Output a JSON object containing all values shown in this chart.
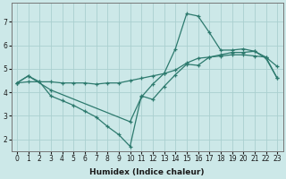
{
  "xlabel": "Humidex (Indice chaleur)",
  "xlim": [
    -0.5,
    23.5
  ],
  "ylim": [
    1.5,
    7.8
  ],
  "yticks": [
    2,
    3,
    4,
    5,
    6,
    7
  ],
  "xticks": [
    0,
    1,
    2,
    3,
    4,
    5,
    6,
    7,
    8,
    9,
    10,
    11,
    12,
    13,
    14,
    15,
    16,
    17,
    18,
    19,
    20,
    21,
    22,
    23
  ],
  "bg_color": "#cce8e8",
  "grid_color": "#aacfcf",
  "line_color": "#2d7a6e",
  "line1_x": [
    0,
    1,
    2,
    3,
    4,
    5,
    6,
    7,
    8,
    9,
    10,
    11,
    12,
    13,
    14,
    15,
    16,
    17,
    18,
    19,
    20,
    21,
    22,
    23
  ],
  "line1_y": [
    4.4,
    4.45,
    4.45,
    4.45,
    4.4,
    4.4,
    4.4,
    4.35,
    4.4,
    4.4,
    4.5,
    4.6,
    4.7,
    4.8,
    4.95,
    5.25,
    5.45,
    5.5,
    5.55,
    5.6,
    5.6,
    5.55,
    5.5,
    4.6
  ],
  "line2_x": [
    0,
    1,
    2,
    3,
    4,
    5,
    6,
    7,
    8,
    9,
    10,
    11,
    12,
    13,
    14,
    15,
    16,
    17,
    18,
    19,
    20,
    21,
    22,
    23
  ],
  "line2_y": [
    4.4,
    4.7,
    4.45,
    3.85,
    3.65,
    3.45,
    3.2,
    2.95,
    2.55,
    2.2,
    1.7,
    3.85,
    3.7,
    4.25,
    4.75,
    5.2,
    5.15,
    5.5,
    5.6,
    5.7,
    5.7,
    5.75,
    5.5,
    5.1
  ],
  "line3_x": [
    0,
    1,
    3,
    10,
    11,
    12,
    13,
    14,
    15,
    16,
    17,
    18,
    19,
    20,
    21,
    22,
    23
  ],
  "line3_y": [
    4.4,
    4.7,
    4.1,
    2.75,
    3.8,
    4.35,
    4.8,
    5.85,
    7.35,
    7.25,
    6.55,
    5.8,
    5.8,
    5.85,
    5.75,
    5.45,
    4.6
  ]
}
